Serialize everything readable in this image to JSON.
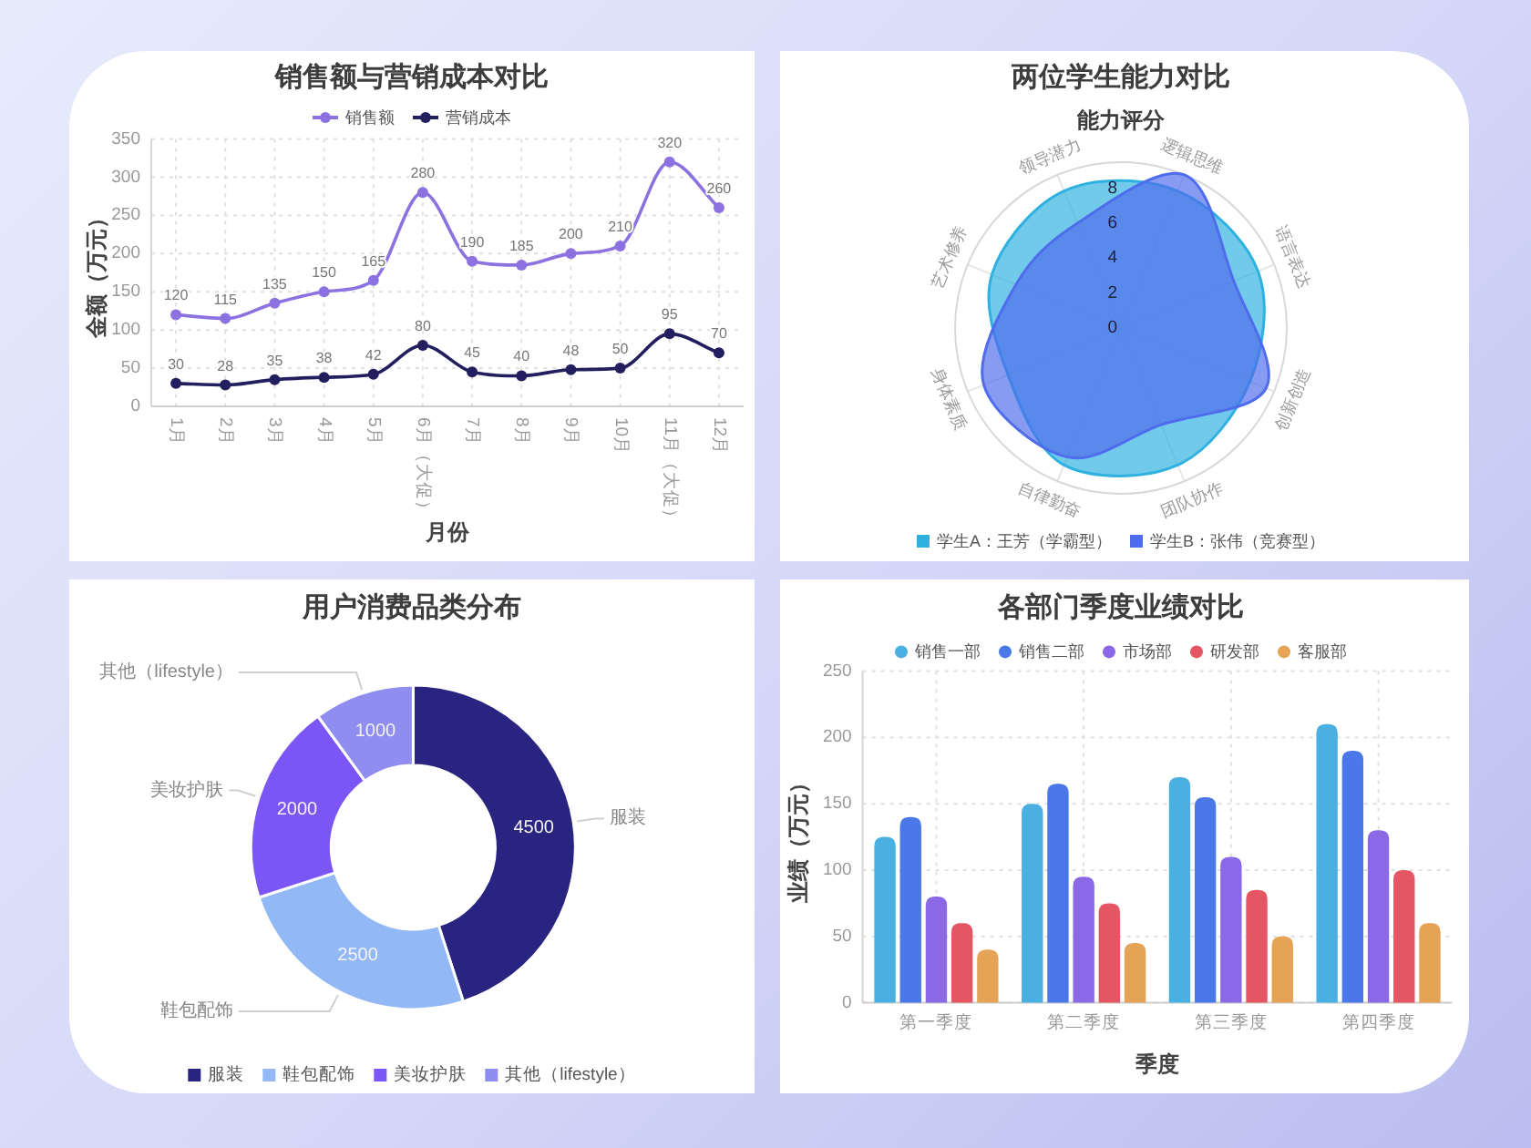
{
  "chart_data": [
    {
      "type": "line",
      "title": "销售额与营销成本对比",
      "xlabel": "月份",
      "ylabel": "金额（万元）",
      "categories": [
        "1月",
        "2月",
        "3月",
        "4月",
        "5月",
        "6月（大促）",
        "7月",
        "8月",
        "9月",
        "10月",
        "11月（大促）",
        "12月"
      ],
      "series": [
        {
          "name": "销售额",
          "color": "#8c72e0",
          "values": [
            120,
            115,
            135,
            150,
            165,
            280,
            190,
            185,
            200,
            210,
            320,
            260
          ]
        },
        {
          "name": "营销成本",
          "color": "#231e5e",
          "values": [
            30,
            28,
            35,
            38,
            42,
            80,
            45,
            40,
            48,
            50,
            95,
            70
          ]
        }
      ],
      "ylim": [
        0,
        350
      ],
      "yticks": [
        0,
        50,
        100,
        150,
        200,
        250,
        300,
        350
      ],
      "grid": true,
      "legend": "top",
      "marker": "circle",
      "data_labels": true
    },
    {
      "type": "radar",
      "title": "两位学生能力对比",
      "subtitle": "能力评分",
      "categories": [
        "逻辑思维",
        "语言表达",
        "创新创造",
        "团队协作",
        "自律勤奋",
        "身体素质",
        "艺术修养",
        "领导潜力"
      ],
      "series": [
        {
          "name": "学生A：王芳（学霸型）",
          "color": "#2eb1e0",
          "values": [
            8.5,
            8.5,
            8,
            8.5,
            8.5,
            7,
            8,
            8.5
          ]
        },
        {
          "name": "学生B：张伟（竞赛型）",
          "color": "#4e6cec",
          "values": [
            9.5,
            7,
            9,
            6,
            8,
            8.5,
            6.5,
            6.5
          ]
        }
      ],
      "ylim": [
        0,
        9.5
      ],
      "yticks": [
        0,
        2,
        4,
        6,
        8
      ],
      "legend": "bottom"
    },
    {
      "type": "donut",
      "title": "用户消费品类分布",
      "categories": [
        "服装",
        "鞋包配饰",
        "美妆护肤",
        "其他（lifestyle）"
      ],
      "values": [
        4500,
        2500,
        2000,
        1000
      ],
      "colors": [
        "#29247f",
        "#93b8f6",
        "#7c56f4",
        "#908df1"
      ],
      "data_labels": true,
      "legend": "bottom"
    },
    {
      "type": "bar",
      "title": "各部门季度业绩对比",
      "xlabel": "季度",
      "ylabel": "业绩（万元）",
      "categories": [
        "第一季度",
        "第二季度",
        "第三季度",
        "第四季度"
      ],
      "series": [
        {
          "name": "销售一部",
          "color": "#4ab0e2",
          "values": [
            125,
            150,
            170,
            210
          ]
        },
        {
          "name": "销售二部",
          "color": "#4a78e8",
          "values": [
            140,
            165,
            155,
            190
          ]
        },
        {
          "name": "市场部",
          "color": "#8a68e6",
          "values": [
            80,
            95,
            110,
            130
          ]
        },
        {
          "name": "研发部",
          "color": "#e45663",
          "values": [
            60,
            75,
            85,
            100
          ]
        },
        {
          "name": "客服部",
          "color": "#e5a455",
          "values": [
            40,
            45,
            50,
            60
          ]
        }
      ],
      "ylim": [
        0,
        250
      ],
      "yticks": [
        0,
        50,
        100,
        150,
        200,
        250
      ],
      "grid": true,
      "legend": "top"
    }
  ]
}
